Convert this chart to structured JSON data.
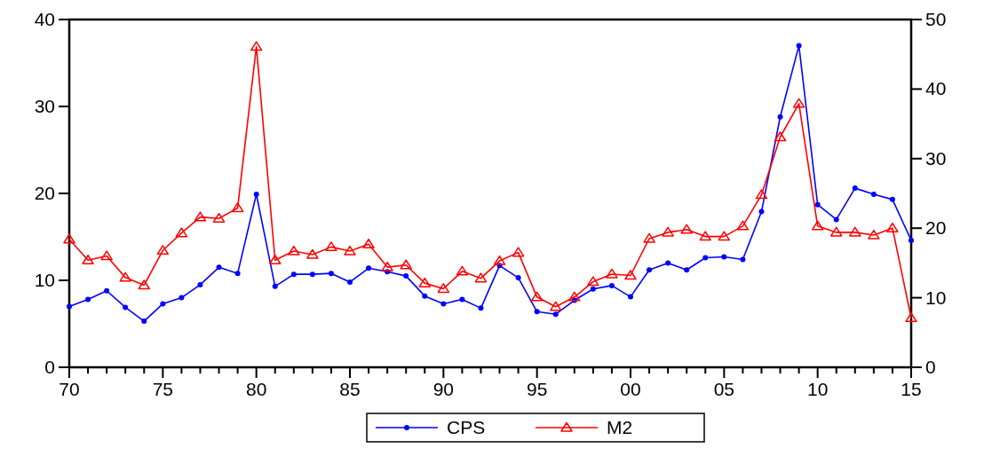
{
  "chart_data": {
    "type": "line",
    "x": [
      1970,
      1971,
      1972,
      1973,
      1974,
      1975,
      1976,
      1977,
      1978,
      1979,
      1980,
      1981,
      1982,
      1983,
      1984,
      1985,
      1986,
      1987,
      1988,
      1989,
      1990,
      1991,
      1992,
      1993,
      1994,
      1995,
      1996,
      1997,
      1998,
      1999,
      2000,
      2001,
      2002,
      2003,
      2004,
      2005,
      2006,
      2007,
      2008,
      2009,
      2010,
      2011,
      2012,
      2013,
      2014,
      2015
    ],
    "series": [
      {
        "name": "CPS",
        "color": "#0000ff",
        "marker": "circle",
        "values": [
          7.0,
          7.8,
          8.8,
          6.9,
          5.3,
          7.3,
          8.0,
          9.5,
          11.5,
          10.8,
          19.9,
          9.3,
          10.7,
          10.7,
          10.8,
          9.8,
          11.4,
          11.0,
          10.5,
          8.2,
          7.3,
          7.8,
          6.8,
          11.7,
          10.3,
          6.4,
          6.1,
          7.7,
          9.0,
          9.4,
          8.1,
          11.2,
          12.0,
          11.2,
          12.6,
          12.7,
          12.4,
          17.9,
          28.8,
          37.0,
          18.7,
          17.0,
          20.6,
          19.9,
          19.3,
          14.6
        ]
      },
      {
        "name": "M2",
        "color": "#ff0000",
        "marker": "triangle",
        "axis": "y2",
        "values": [
          18.4,
          15.4,
          16.0,
          12.9,
          11.8,
          16.8,
          19.3,
          21.6,
          21.4,
          22.9,
          46.1,
          15.4,
          16.7,
          16.2,
          17.3,
          16.7,
          17.7,
          14.4,
          14.7,
          12.1,
          11.3,
          13.8,
          12.8,
          15.3,
          16.5,
          10.1,
          8.7,
          10.1,
          12.3,
          13.4,
          13.2,
          18.5,
          19.4,
          19.8,
          18.8,
          18.8,
          20.3,
          24.8,
          33.1,
          37.9,
          20.3,
          19.4,
          19.4,
          19.0,
          20.0,
          7.1
        ]
      }
    ],
    "xlim": [
      1970,
      2015
    ],
    "xticks": [
      {
        "value": 1970,
        "label": "70"
      },
      {
        "value": 1971,
        "label": null
      },
      {
        "value": 1972,
        "label": null
      },
      {
        "value": 1973,
        "label": null
      },
      {
        "value": 1974,
        "label": null
      },
      {
        "value": 1975,
        "label": "75"
      },
      {
        "value": 1976,
        "label": null
      },
      {
        "value": 1977,
        "label": null
      },
      {
        "value": 1978,
        "label": null
      },
      {
        "value": 1979,
        "label": null
      },
      {
        "value": 1980,
        "label": "80"
      },
      {
        "value": 1981,
        "label": null
      },
      {
        "value": 1982,
        "label": null
      },
      {
        "value": 1983,
        "label": null
      },
      {
        "value": 1984,
        "label": null
      },
      {
        "value": 1985,
        "label": "85"
      },
      {
        "value": 1986,
        "label": null
      },
      {
        "value": 1987,
        "label": null
      },
      {
        "value": 1988,
        "label": null
      },
      {
        "value": 1989,
        "label": null
      },
      {
        "value": 1990,
        "label": "90"
      },
      {
        "value": 1991,
        "label": null
      },
      {
        "value": 1992,
        "label": null
      },
      {
        "value": 1993,
        "label": null
      },
      {
        "value": 1994,
        "label": null
      },
      {
        "value": 1995,
        "label": "95"
      },
      {
        "value": 1996,
        "label": null
      },
      {
        "value": 1997,
        "label": null
      },
      {
        "value": 1998,
        "label": null
      },
      {
        "value": 1999,
        "label": null
      },
      {
        "value": 2000,
        "label": "00"
      },
      {
        "value": 2001,
        "label": null
      },
      {
        "value": 2002,
        "label": null
      },
      {
        "value": 2003,
        "label": null
      },
      {
        "value": 2004,
        "label": null
      },
      {
        "value": 2005,
        "label": "05"
      },
      {
        "value": 2006,
        "label": null
      },
      {
        "value": 2007,
        "label": null
      },
      {
        "value": 2008,
        "label": null
      },
      {
        "value": 2009,
        "label": null
      },
      {
        "value": 2010,
        "label": "10"
      },
      {
        "value": 2011,
        "label": null
      },
      {
        "value": 2012,
        "label": null
      },
      {
        "value": 2013,
        "label": null
      },
      {
        "value": 2014,
        "label": null
      },
      {
        "value": 2015,
        "label": "15"
      }
    ],
    "ylim": [
      0,
      40
    ],
    "yticks": [
      0,
      10,
      20,
      30,
      40
    ],
    "y2lim": [
      0,
      50
    ],
    "y2ticks": [
      0,
      10,
      20,
      30,
      40,
      50
    ],
    "legend": "bottom",
    "line_style": "solid"
  }
}
